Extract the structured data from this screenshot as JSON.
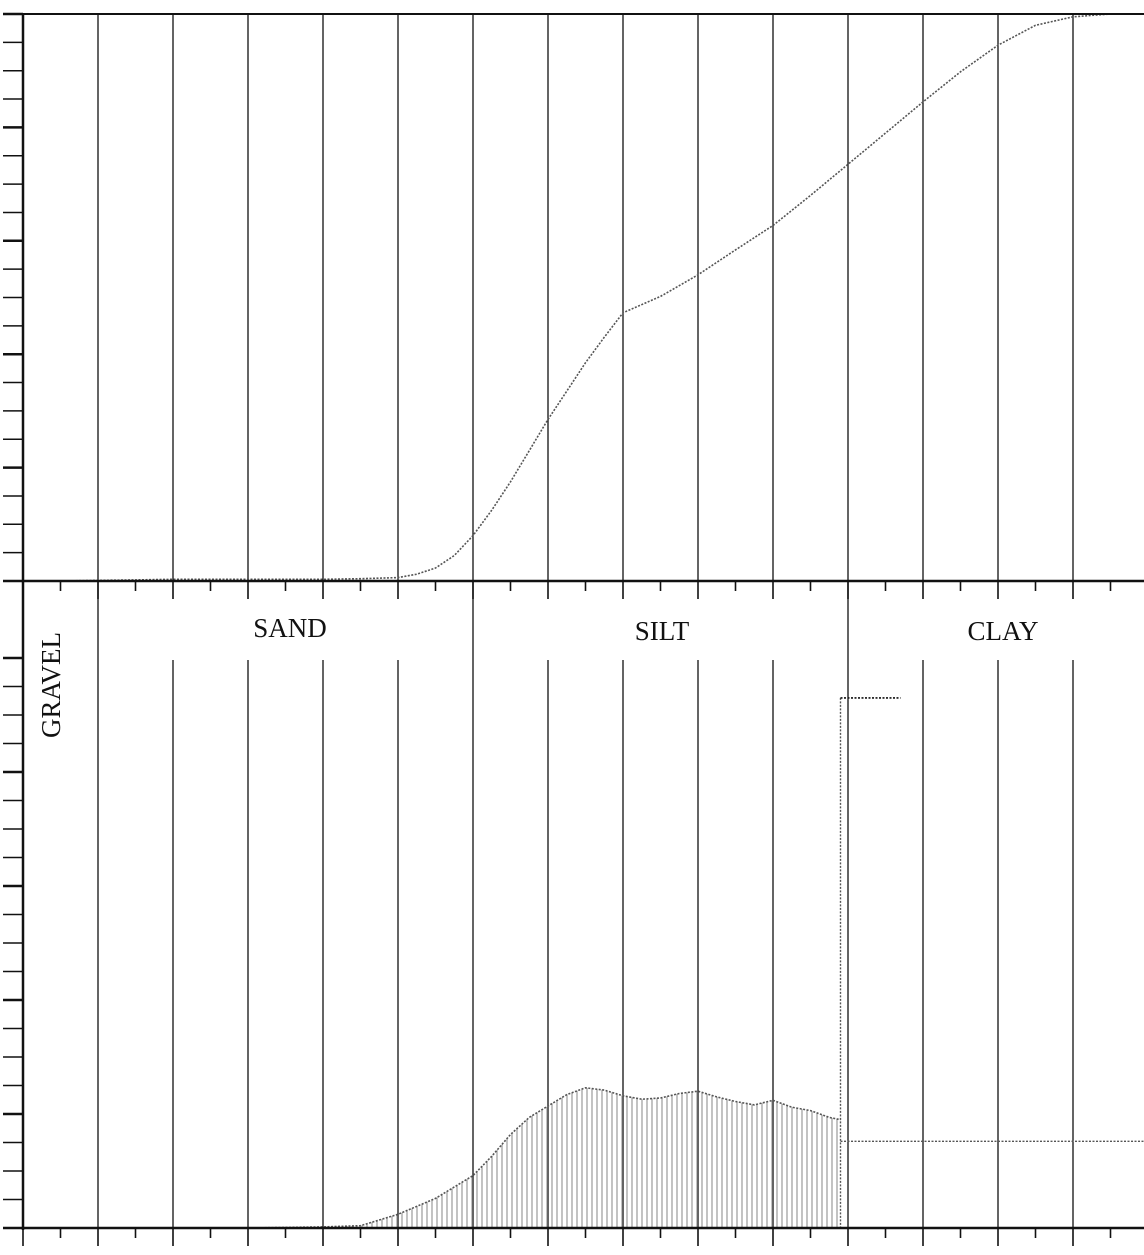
{
  "colors": {
    "ink": "#111111",
    "curve": "#555555",
    "fill": "#9a9a9a"
  },
  "class_labels": {
    "gravel": "GRAVEL",
    "sand": "SAND",
    "silt": "SILT",
    "clay": "CLAY"
  },
  "chart_data": [
    {
      "type": "line",
      "title": "",
      "xlabel": "",
      "ylabel": "",
      "grid": true,
      "x": [
        0,
        0.5,
        1,
        1.5,
        2,
        2.5,
        3,
        3.5,
        4,
        4.5,
        5,
        5.25,
        5.5,
        5.75,
        6,
        6.25,
        6.5,
        6.75,
        7,
        7.25,
        7.5,
        7.75,
        8,
        8.5,
        9,
        9.5,
        10,
        10.5,
        11,
        11.5,
        12,
        12.5,
        13,
        13.5,
        14,
        14.5,
        15
      ],
      "series": [
        {
          "values": [
            0,
            0,
            0.1,
            0.2,
            0.3,
            0.3,
            0.3,
            0.3,
            0.3,
            0.4,
            0.6,
            1.2,
            2.3,
            4.5,
            8.0,
            12.5,
            17.5,
            23.0,
            28.5,
            33.5,
            38.5,
            43.0,
            47.3,
            50.2,
            54.0,
            58.4,
            62.7,
            68.0,
            73.5,
            79.0,
            84.5,
            89.8,
            94.5,
            98.0,
            99.5,
            100,
            100
          ]
        }
      ]
    },
    {
      "type": "area",
      "title": "",
      "xlabel": "",
      "ylabel": "",
      "grid": true,
      "x": [
        0,
        1,
        2,
        3,
        4,
        4.5,
        5,
        5.5,
        6,
        6.25,
        6.5,
        6.75,
        7,
        7.25,
        7.5,
        7.75,
        8,
        8.25,
        8.5,
        8.75,
        9,
        9.25,
        9.5,
        9.75,
        10,
        10.25,
        10.5,
        10.75,
        10.9,
        11,
        11.25,
        11.5,
        11.75,
        12,
        12.5,
        13,
        13.5,
        14,
        15
      ],
      "series": [
        {
          "values": [
            0,
            0,
            0,
            0,
            0.1,
            0.2,
            1.2,
            2.6,
            4.6,
            6.3,
            8.2,
            9.7,
            10.7,
            11.7,
            12.3,
            12.1,
            11.6,
            11.3,
            11.4,
            11.8,
            12.0,
            11.5,
            11.1,
            10.8,
            11.2,
            10.6,
            10.3,
            9.7,
            9.5,
            7.6,
            10.8,
            10.8,
            10.8,
            10.8,
            10.8,
            10.8,
            10.8,
            10.8,
            10.8
          ]
        }
      ],
      "class_bars": [
        {
          "class": "clay",
          "from": 10.9,
          "to": 11.7,
          "value": 46.5
        }
      ]
    }
  ]
}
